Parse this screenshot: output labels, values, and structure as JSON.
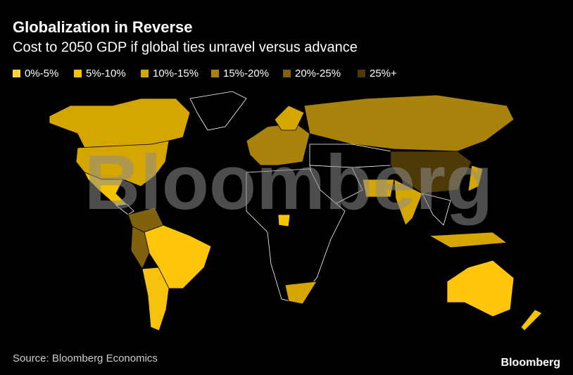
{
  "header": {
    "title": "Globalization in Reverse",
    "subtitle": "Cost to 2050 GDP if global ties unravel versus advance"
  },
  "legend": [
    {
      "label": "0%-5%",
      "color": "#ffd23f"
    },
    {
      "label": "5%-10%",
      "color": "#f5c400"
    },
    {
      "label": "10%-15%",
      "color": "#d6a600"
    },
    {
      "label": "15%-20%",
      "color": "#a9820b"
    },
    {
      "label": "20%-25%",
      "color": "#7f620b"
    },
    {
      "label": "25%+",
      "color": "#4e3a07"
    }
  ],
  "watermark": "Bloomberg",
  "footer": {
    "source": "Source: Bloomberg Economics",
    "brand": "Bloomberg"
  }
}
